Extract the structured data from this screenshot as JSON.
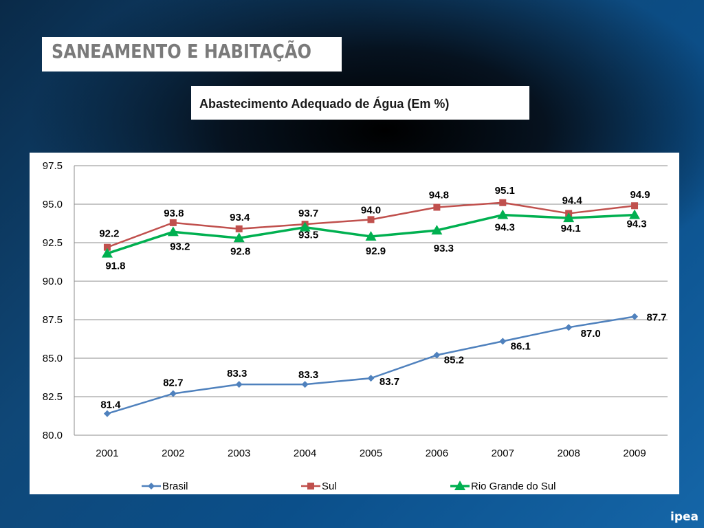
{
  "header": {
    "section_title": "SANEAMENTO E HABITAÇÃO",
    "chart_title": "Abastecimento Adequado de Água (Em %)"
  },
  "logo": {
    "text": "ipea"
  },
  "colors": {
    "Brasil": "#4F81BD",
    "Sul": "#C0504D",
    "Rio Grande do Sul": "#00B050",
    "grid": "#8c8c8c"
  },
  "chart_data": {
    "type": "line",
    "categories": [
      "2001",
      "2002",
      "2003",
      "2004",
      "2005",
      "2006",
      "2007",
      "2008",
      "2009"
    ],
    "ylim": [
      80.0,
      97.5
    ],
    "yticks": [
      "80.0",
      "82.5",
      "85.0",
      "87.5",
      "90.0",
      "92.5",
      "95.0",
      "97.5"
    ],
    "grid": true,
    "legend_position": "bottom",
    "series": [
      {
        "name": "Brasil",
        "marker": "diamond",
        "values": [
          81.4,
          82.7,
          83.3,
          83.3,
          83.7,
          85.2,
          86.1,
          87.0,
          87.7
        ]
      },
      {
        "name": "Sul",
        "marker": "square",
        "values": [
          92.2,
          93.8,
          93.4,
          93.7,
          94.0,
          94.8,
          95.1,
          94.4,
          94.9
        ]
      },
      {
        "name": "Rio Grande do Sul",
        "marker": "triangle",
        "values": [
          91.8,
          93.2,
          92.8,
          93.5,
          92.9,
          93.3,
          94.3,
          94.1,
          94.3
        ]
      }
    ]
  }
}
